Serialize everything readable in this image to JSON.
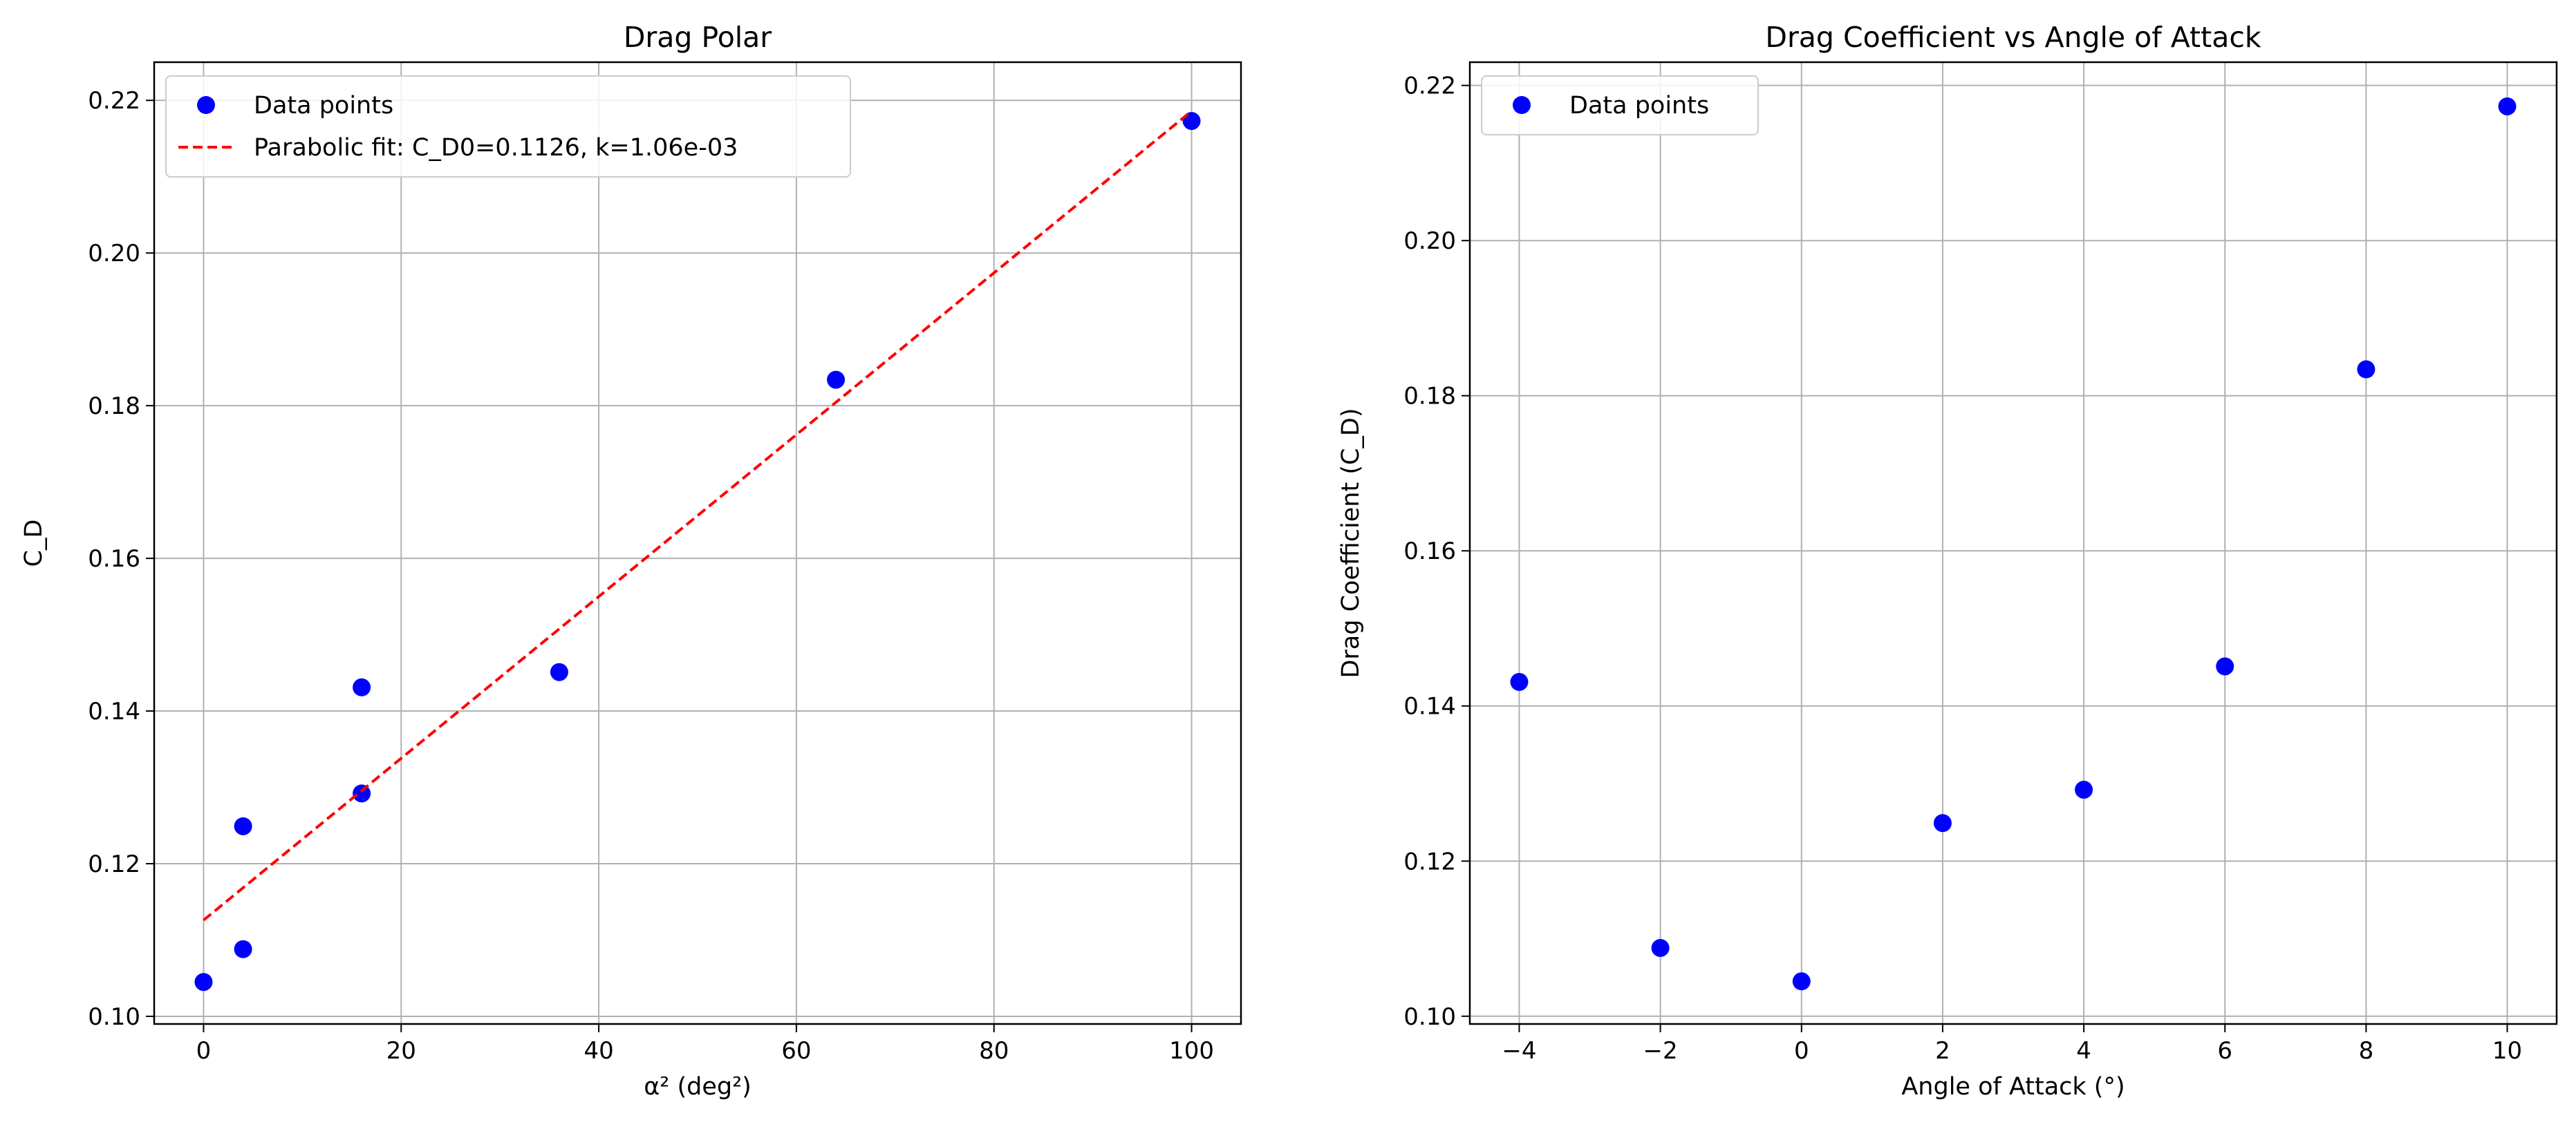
{
  "chart_data": [
    {
      "type": "scatter",
      "title": "Drag Polar",
      "xlabel": "α² (deg²)",
      "ylabel": "C_D",
      "xlim": [
        -5,
        105
      ],
      "ylim": [
        0.099,
        0.225
      ],
      "xticks": [
        0,
        20,
        40,
        60,
        80,
        100
      ],
      "xtick_labels": [
        "0",
        "20",
        "40",
        "60",
        "80",
        "100"
      ],
      "yticks": [
        0.1,
        0.12,
        0.14,
        0.16,
        0.18,
        0.2,
        0.22
      ],
      "ytick_labels": [
        "0.10",
        "0.12",
        "0.14",
        "0.16",
        "0.18",
        "0.20",
        "0.22"
      ],
      "grid": true,
      "legend": "top-left",
      "series": [
        {
          "name": "Data points",
          "kind": "points",
          "color": "#0000ff",
          "x": [
            16,
            4,
            0,
            4,
            16,
            36,
            64,
            100
          ],
          "y": [
            0.1431,
            0.1088,
            0.1045,
            0.1249,
            0.1292,
            0.1451,
            0.1834,
            0.2173
          ]
        },
        {
          "name": "Parabolic fit: C_D0=0.1126, k=1.06e-03",
          "kind": "dashed-line",
          "color": "#ff0000",
          "x": [
            0,
            100
          ],
          "y": [
            0.1126,
            0.2186
          ]
        }
      ]
    },
    {
      "type": "scatter",
      "title": "Drag Coefficient vs Angle of Attack",
      "xlabel": "Angle of Attack (°)",
      "ylabel": "Drag Coefficient (C_D)",
      "xlim": [
        -4.7,
        10.7
      ],
      "ylim": [
        0.099,
        0.223
      ],
      "xticks": [
        -4,
        -2,
        0,
        2,
        4,
        6,
        8,
        10
      ],
      "xtick_labels": [
        "−4",
        "−2",
        "0",
        "2",
        "4",
        "6",
        "8",
        "10"
      ],
      "yticks": [
        0.1,
        0.12,
        0.14,
        0.16,
        0.18,
        0.2,
        0.22
      ],
      "ytick_labels": [
        "0.10",
        "0.12",
        "0.14",
        "0.16",
        "0.18",
        "0.20",
        "0.22"
      ],
      "grid": true,
      "legend": "top-left",
      "series": [
        {
          "name": "Data points",
          "kind": "points",
          "color": "#0000ff",
          "x": [
            -4,
            -2,
            0,
            2,
            4,
            6,
            8,
            10
          ],
          "y": [
            0.1431,
            0.1088,
            0.1045,
            0.1249,
            0.1292,
            0.1451,
            0.1834,
            0.2173
          ]
        }
      ]
    }
  ]
}
